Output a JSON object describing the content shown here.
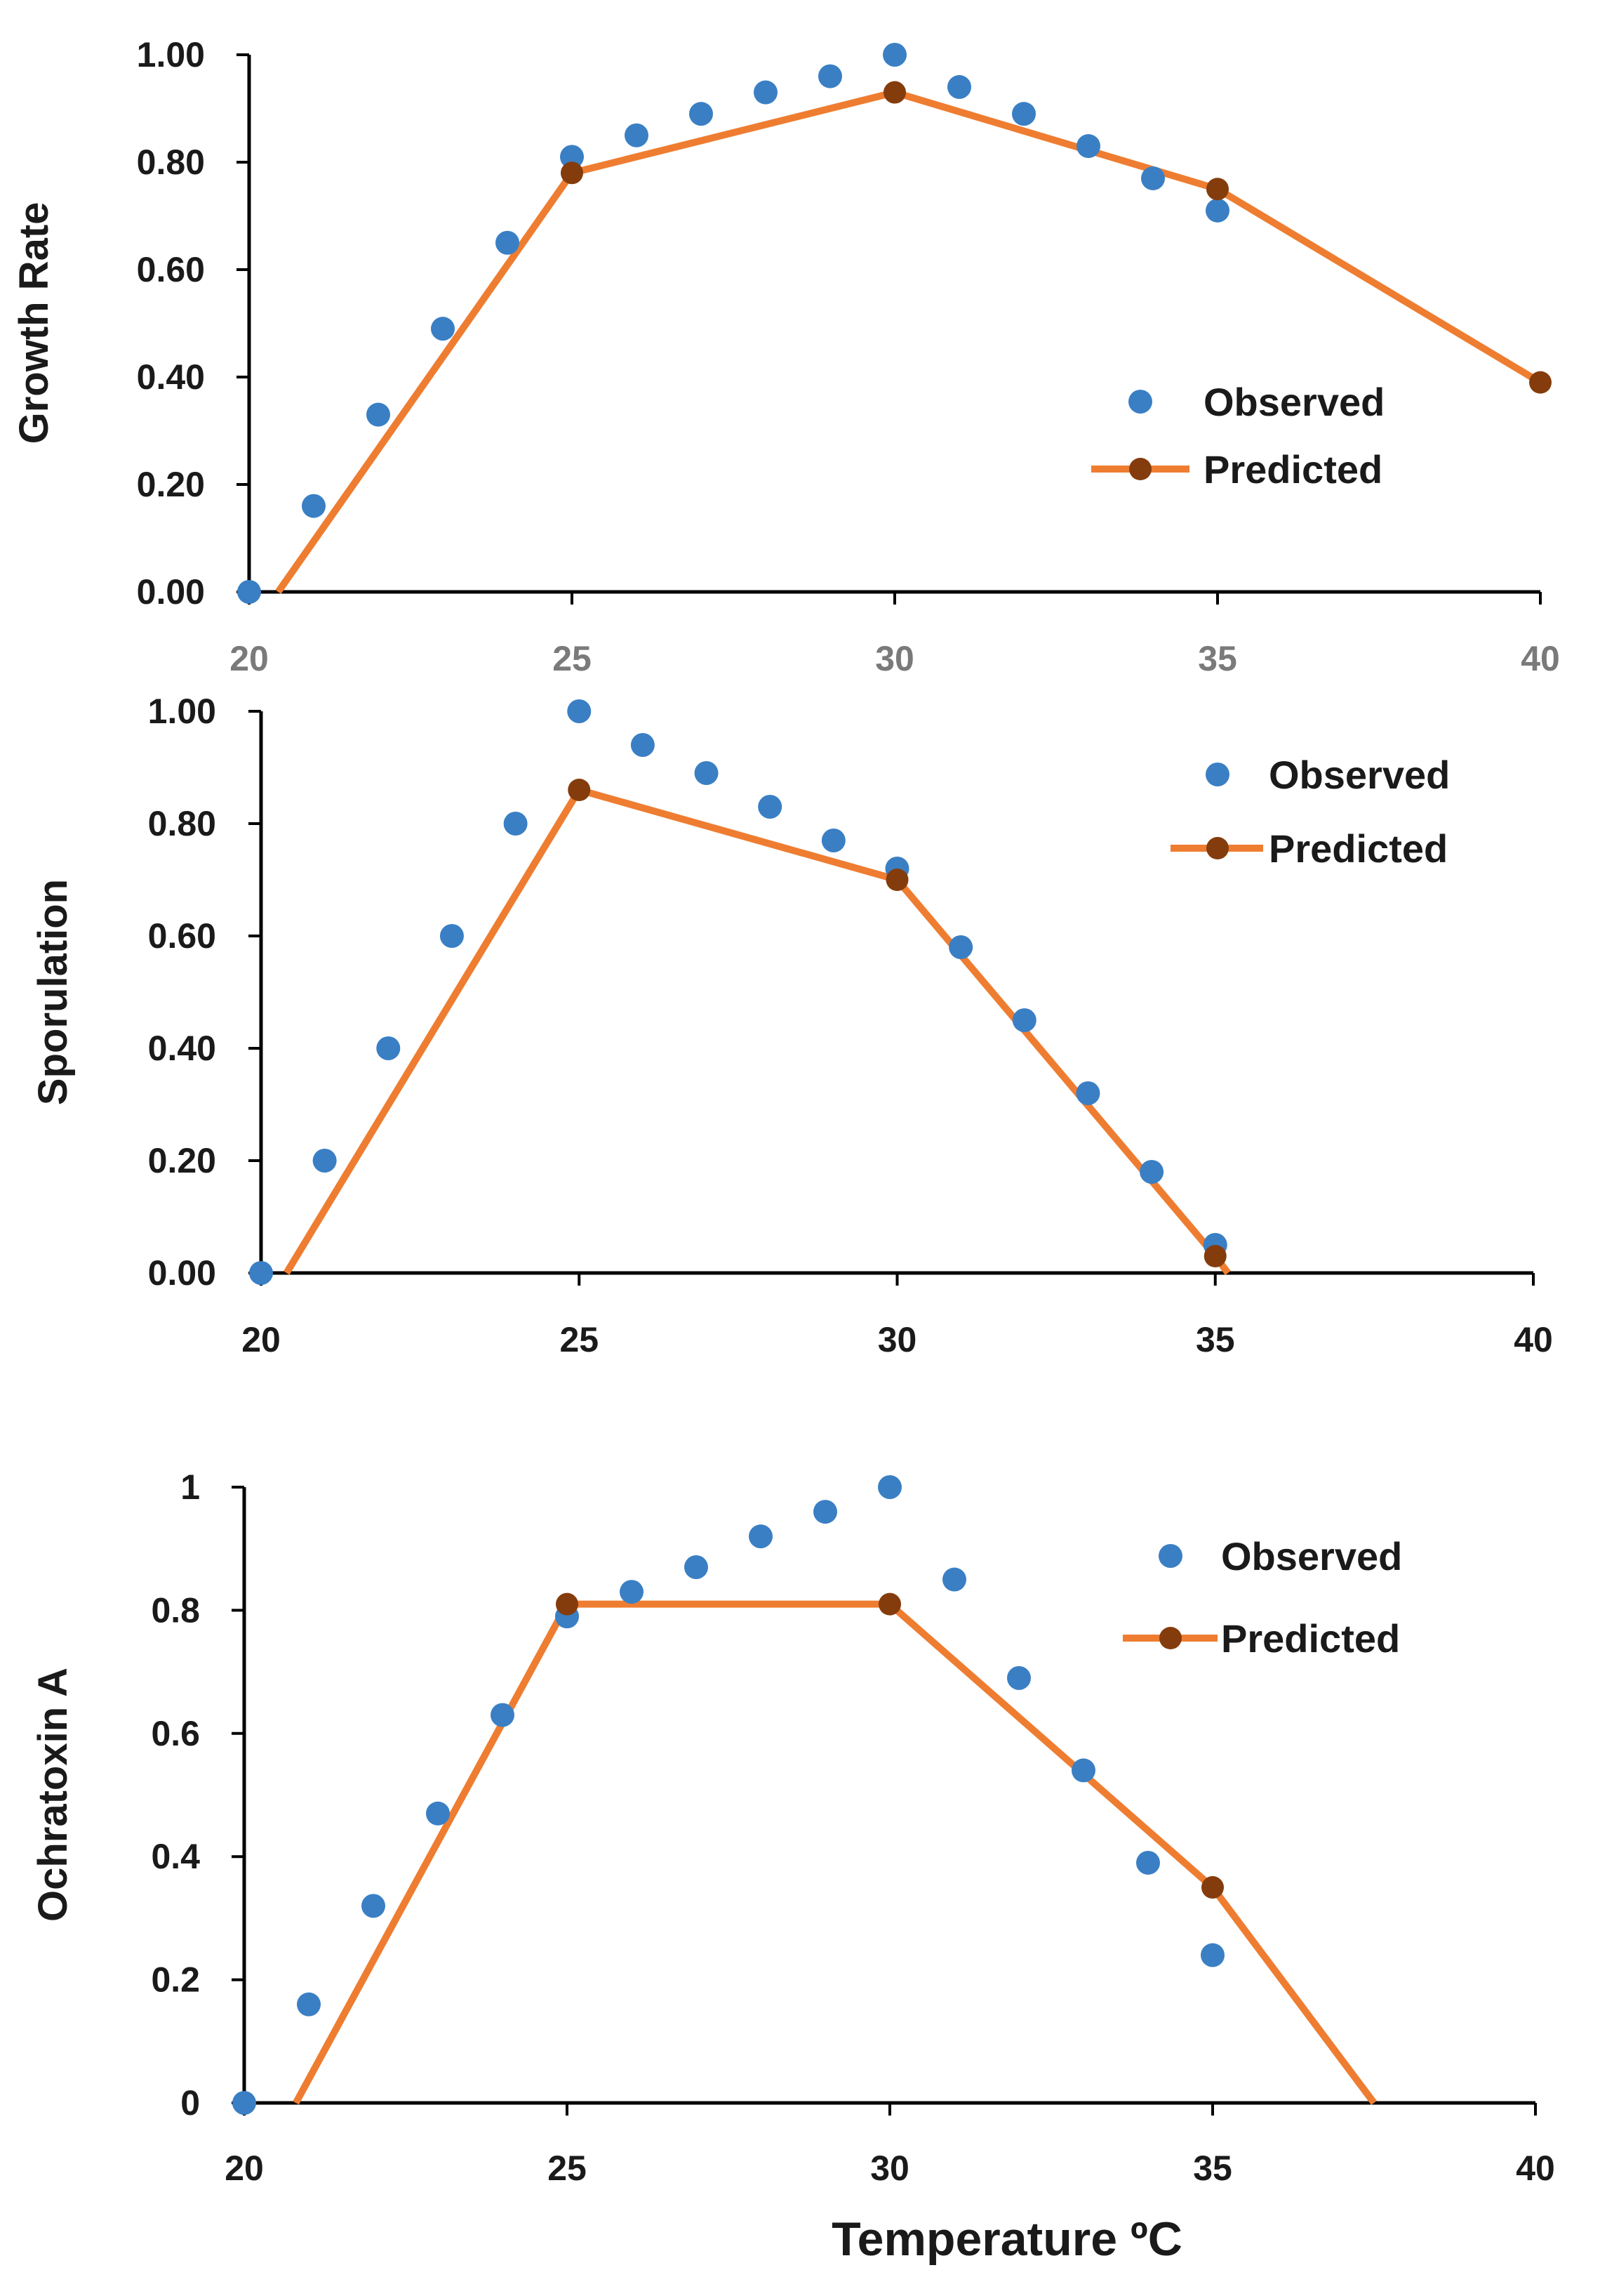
{
  "chart_data": [
    {
      "type": "line",
      "ylabel": "Growth Rate",
      "xlim": [
        20,
        40
      ],
      "ylim": [
        0,
        1
      ],
      "x_ticks": [
        "20",
        "25",
        "30",
        "35",
        "40"
      ],
      "y_ticks": [
        "0.00",
        "0.20",
        "0.40",
        "0.60",
        "0.80",
        "1.00"
      ],
      "legend": {
        "observed": "Observed",
        "predicted": "Predicted"
      },
      "observed": {
        "x": [
          20,
          21,
          22,
          23,
          24,
          25,
          26,
          27,
          28,
          29,
          30,
          31,
          32,
          33,
          34,
          35
        ],
        "y": [
          0.0,
          0.16,
          0.33,
          0.49,
          0.65,
          0.81,
          0.85,
          0.89,
          0.93,
          0.96,
          1.0,
          0.94,
          0.89,
          0.83,
          0.77,
          0.71
        ]
      },
      "predicted": {
        "x": [
          20.45,
          25,
          30,
          35,
          40
        ],
        "y": [
          0.0,
          0.78,
          0.93,
          0.75,
          0.39
        ],
        "marker_x": [
          25,
          30,
          35,
          40
        ],
        "marker_y": [
          0.78,
          0.93,
          0.75,
          0.39
        ]
      }
    },
    {
      "type": "line",
      "ylabel": "Sporulation",
      "xlim": [
        20,
        40
      ],
      "ylim": [
        0,
        1
      ],
      "x_ticks": [
        "20",
        "25",
        "30",
        "35",
        "40"
      ],
      "y_ticks": [
        "0.00",
        "0.20",
        "0.40",
        "0.60",
        "0.80",
        "1.00"
      ],
      "legend": {
        "observed": "Observed",
        "predicted": "Predicted"
      },
      "observed": {
        "x": [
          20,
          21,
          22,
          23,
          24,
          25,
          26,
          27,
          28,
          29,
          30,
          31,
          32,
          33,
          34,
          35
        ],
        "y": [
          0.0,
          0.2,
          0.4,
          0.6,
          0.8,
          1.0,
          0.94,
          0.89,
          0.83,
          0.77,
          0.72,
          0.58,
          0.45,
          0.32,
          0.18,
          0.05
        ]
      },
      "predicted": {
        "x": [
          20.4,
          25,
          30,
          35,
          35.2
        ],
        "y": [
          0.0,
          0.86,
          0.7,
          0.03,
          0.0
        ],
        "marker_x": [
          25,
          30,
          35
        ],
        "marker_y": [
          0.86,
          0.7,
          0.03
        ]
      }
    },
    {
      "type": "line",
      "ylabel": "Ochratoxin A",
      "xlabel": "Temperature ºC",
      "xlim": [
        20,
        40
      ],
      "ylim": [
        0,
        1
      ],
      "x_ticks": [
        "20",
        "25",
        "30",
        "35",
        "40"
      ],
      "y_ticks": [
        "0",
        "0.2",
        "0.4",
        "0.6",
        "0.8",
        "1"
      ],
      "legend": {
        "observed": "Observed",
        "predicted": "Predicted"
      },
      "observed": {
        "x": [
          20,
          21,
          22,
          23,
          24,
          25,
          26,
          27,
          28,
          29,
          30,
          31,
          32,
          33,
          34,
          35
        ],
        "y": [
          0.0,
          0.16,
          0.32,
          0.47,
          0.63,
          0.79,
          0.83,
          0.87,
          0.92,
          0.96,
          1.0,
          0.85,
          0.69,
          0.54,
          0.39,
          0.24
        ]
      },
      "predicted": {
        "x": [
          20.8,
          25,
          30,
          35,
          37.5
        ],
        "y": [
          0.0,
          0.81,
          0.81,
          0.35,
          0.0
        ],
        "marker_x": [
          25,
          30,
          35
        ],
        "marker_y": [
          0.81,
          0.81,
          0.35
        ]
      }
    }
  ]
}
